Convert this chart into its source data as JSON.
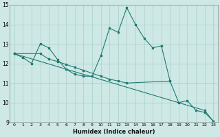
{
  "xlabel": "Humidex (Indice chaleur)",
  "xlim": [
    -0.5,
    23.5
  ],
  "ylim": [
    9,
    15
  ],
  "yticks": [
    9,
    10,
    11,
    12,
    13,
    14,
    15
  ],
  "xticks": [
    0,
    1,
    2,
    3,
    4,
    5,
    6,
    7,
    8,
    9,
    10,
    11,
    12,
    13,
    14,
    15,
    16,
    17,
    18,
    19,
    20,
    21,
    22,
    23
  ],
  "bg_color": "#cde8e5",
  "grid_color": "#aacfcc",
  "line_color": "#1e7a70",
  "line1_x": [
    0,
    1,
    2,
    3,
    4,
    5,
    6,
    7,
    8,
    9,
    10,
    11,
    12,
    13,
    14,
    15,
    16,
    17,
    18
  ],
  "line1_y": [
    12.5,
    12.3,
    12.0,
    13.0,
    12.8,
    12.2,
    11.7,
    11.45,
    11.35,
    11.35,
    12.4,
    13.8,
    13.6,
    14.85,
    14.0,
    13.3,
    12.8,
    12.9,
    11.1
  ],
  "line2_x": [
    0,
    3,
    4,
    5,
    6,
    7,
    8,
    10,
    11,
    12,
    13,
    18,
    19,
    20,
    21,
    22,
    23
  ],
  "line2_y": [
    12.5,
    12.5,
    12.22,
    12.1,
    11.95,
    11.8,
    11.65,
    11.35,
    11.2,
    11.1,
    11.0,
    11.1,
    10.0,
    10.1,
    9.6,
    9.5,
    9.05
  ],
  "line3_x": [
    0,
    22,
    23
  ],
  "line3_y": [
    12.5,
    9.6,
    9.05
  ]
}
